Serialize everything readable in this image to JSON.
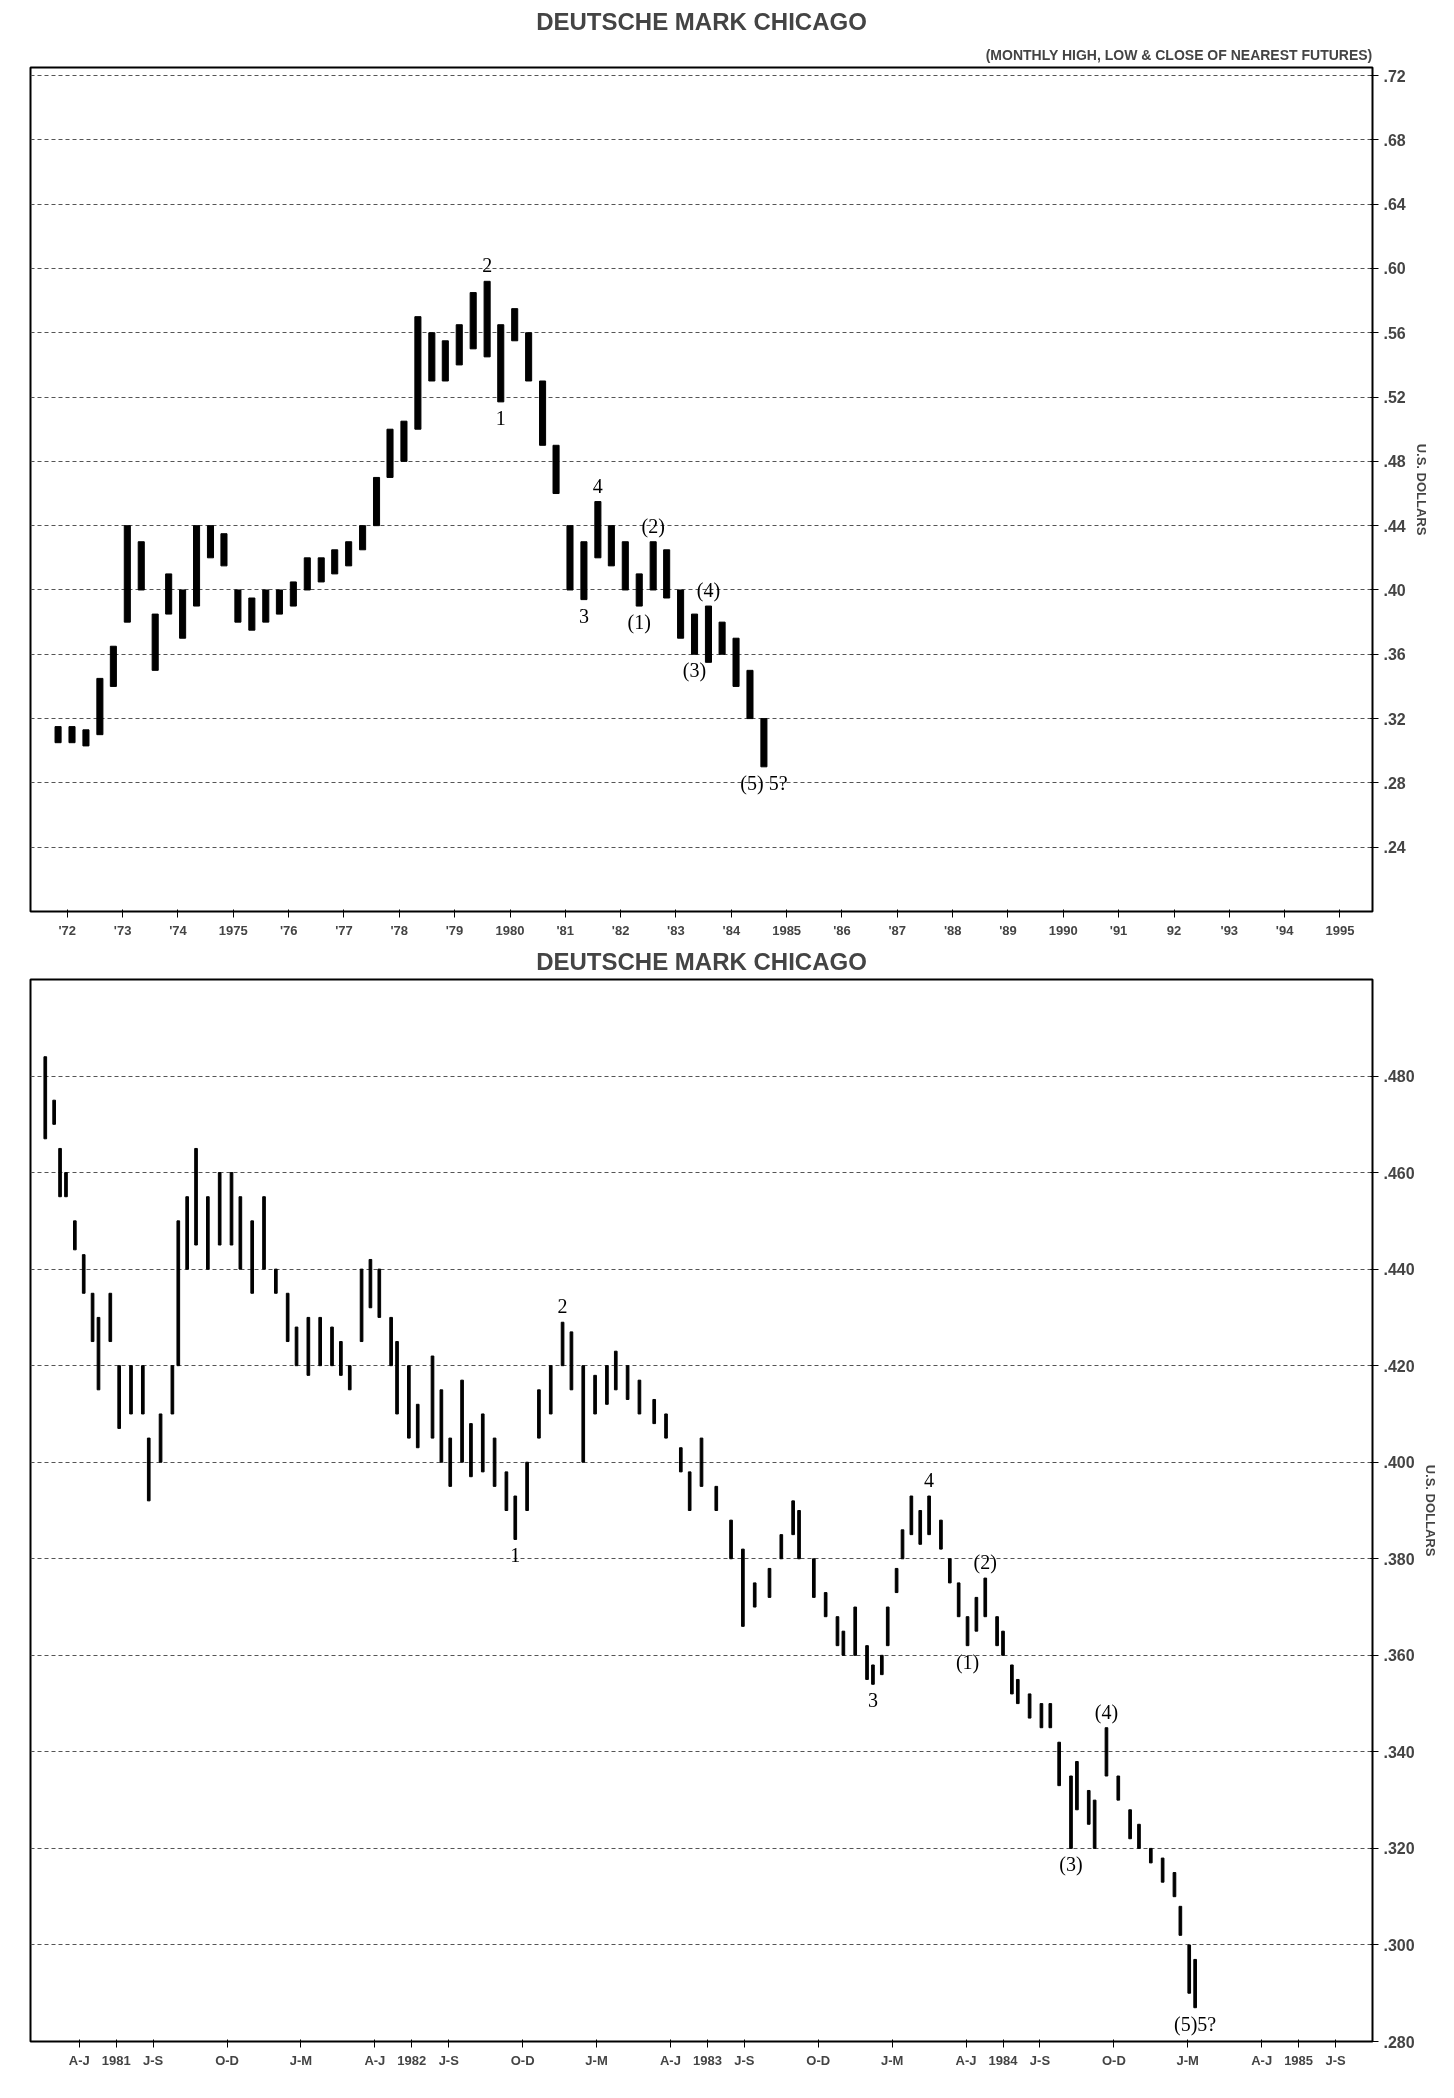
{
  "chart_data": [
    {
      "type": "bar",
      "title": "DEUTSCHE MARK CHICAGO",
      "subtitle": "(MONTHLY HIGH, LOW & CLOSE OF NEAREST FUTURES)",
      "ylabel": "U.S. DOLLARS",
      "x": [
        "1972-05",
        "1972-08",
        "1972-11",
        "1973-02",
        "1973-05",
        "1973-08",
        "1973-11",
        "1974-02",
        "1974-05",
        "1974-08",
        "1974-11",
        "1975-02",
        "1975-05",
        "1975-08",
        "1975-11",
        "1976-02",
        "1976-05",
        "1976-08",
        "1976-11",
        "1977-02",
        "1977-05",
        "1977-08",
        "1977-11",
        "1978-02",
        "1978-05",
        "1978-08",
        "1978-11",
        "1979-02",
        "1979-05",
        "1979-08",
        "1979-11",
        "1980-02",
        "1980-05",
        "1980-08",
        "1980-11",
        "1981-02",
        "1981-05",
        "1981-08",
        "1981-11",
        "1982-02",
        "1982-05",
        "1982-08",
        "1982-11",
        "1983-02",
        "1983-05",
        "1983-08",
        "1983-11",
        "1984-02",
        "1984-05",
        "1984-08",
        "1984-11",
        "1985-02"
      ],
      "base": [
        0.305,
        0.305,
        0.303,
        0.31,
        0.34,
        0.38,
        0.4,
        0.35,
        0.385,
        0.37,
        0.39,
        0.42,
        0.415,
        0.38,
        0.375,
        0.38,
        0.385,
        0.39,
        0.4,
        0.405,
        0.41,
        0.415,
        0.425,
        0.44,
        0.47,
        0.48,
        0.5,
        0.53,
        0.53,
        0.54,
        0.55,
        0.545,
        0.517,
        0.555,
        0.53,
        0.49,
        0.46,
        0.4,
        0.394,
        0.42,
        0.415,
        0.4,
        0.39,
        0.4,
        0.395,
        0.37,
        0.36,
        0.355,
        0.36,
        0.34,
        0.32,
        0.29
      ],
      "values": [
        0.01,
        0.01,
        0.01,
        0.035,
        0.025,
        0.06,
        0.03,
        0.035,
        0.025,
        0.03,
        0.05,
        0.02,
        0.02,
        0.02,
        0.02,
        0.02,
        0.015,
        0.015,
        0.02,
        0.015,
        0.015,
        0.015,
        0.015,
        0.03,
        0.03,
        0.025,
        0.07,
        0.03,
        0.025,
        0.025,
        0.035,
        0.047,
        0.048,
        0.02,
        0.03,
        0.04,
        0.03,
        0.04,
        0.036,
        0.035,
        0.025,
        0.03,
        0.02,
        0.03,
        0.03,
        0.03,
        0.025,
        0.035,
        0.02,
        0.03,
        0.03,
        0.03
      ],
      "color": "#000000",
      "xlim": [
        "1971-11",
        "1996-02"
      ],
      "ylim": [
        0.2,
        0.725
      ],
      "xticks": [
        {
          "value": "1972-07",
          "label": "'72"
        },
        {
          "value": "1973-07",
          "label": "'73"
        },
        {
          "value": "1974-07",
          "label": "'74"
        },
        {
          "value": "1975-07",
          "label": "1975"
        },
        {
          "value": "1976-07",
          "label": "'76"
        },
        {
          "value": "1977-07",
          "label": "'77"
        },
        {
          "value": "1978-07",
          "label": "'78"
        },
        {
          "value": "1979-07",
          "label": "'79"
        },
        {
          "value": "1980-07",
          "label": "1980"
        },
        {
          "value": "1981-07",
          "label": "'81"
        },
        {
          "value": "1982-07",
          "label": "'82"
        },
        {
          "value": "1983-07",
          "label": "'83"
        },
        {
          "value": "1984-07",
          "label": "'84"
        },
        {
          "value": "1985-07",
          "label": "1985"
        },
        {
          "value": "1986-07",
          "label": "'86"
        },
        {
          "value": "1987-07",
          "label": "'87"
        },
        {
          "value": "1988-07",
          "label": "'88"
        },
        {
          "value": "1989-07",
          "label": "'89"
        },
        {
          "value": "1990-07",
          "label": "1990"
        },
        {
          "value": "1991-07",
          "label": "'91"
        },
        {
          "value": "1992-07",
          "label": "92"
        },
        {
          "value": "1993-07",
          "label": "'93"
        },
        {
          "value": "1994-07",
          "label": "'94"
        },
        {
          "value": "1995-07",
          "label": "1995"
        }
      ],
      "yticks": [
        {
          "value": 0.24,
          "label": ".24"
        },
        {
          "value": 0.28,
          "label": ".28"
        },
        {
          "value": 0.32,
          "label": ".32"
        },
        {
          "value": 0.36,
          "label": ".36"
        },
        {
          "value": 0.4,
          "label": ".40"
        },
        {
          "value": 0.44,
          "label": ".44"
        },
        {
          "value": 0.48,
          "label": ".48"
        },
        {
          "value": 0.52,
          "label": ".52"
        },
        {
          "value": 0.56,
          "label": ".56"
        },
        {
          "value": 0.6,
          "label": ".60"
        },
        {
          "value": 0.64,
          "label": ".64"
        },
        {
          "value": 0.68,
          "label": ".68"
        },
        {
          "value": 0.72,
          "label": ".72"
        }
      ],
      "grid": "y",
      "annotations": [
        {
          "text": "1",
          "x": "1980-05",
          "y": 0.517
        },
        {
          "text": "2",
          "x": "1980-02",
          "y": 0.592
        },
        {
          "text": "3",
          "x": "1981-11",
          "y": 0.394
        },
        {
          "text": "4",
          "x": "1982-02",
          "y": 0.455
        },
        {
          "text": "(1)",
          "x": "1982-11",
          "y": 0.39
        },
        {
          "text": "(2)",
          "x": "1983-02",
          "y": 0.43
        },
        {
          "text": "(3)",
          "x": "1983-11",
          "y": 0.36
        },
        {
          "text": "(4)",
          "x": "1984-02",
          "y": 0.39
        },
        {
          "text": "(5) 5?",
          "x": "1985-02",
          "y": 0.29
        }
      ]
    },
    {
      "type": "bar",
      "title": "DEUTSCHE MARK CHICAGO",
      "ylabel": "U.S. DOLLARS",
      "x": [
        1981.26,
        1981.29,
        1981.31,
        1981.33,
        1981.36,
        1981.39,
        1981.42,
        1981.44,
        1981.48,
        1981.51,
        1981.55,
        1981.59,
        1981.61,
        1981.65,
        1981.69,
        1981.71,
        1981.74,
        1981.77,
        1981.81,
        1981.85,
        1981.89,
        1981.92,
        1981.96,
        1982.0,
        1982.04,
        1982.08,
        1982.11,
        1982.15,
        1982.19,
        1982.23,
        1982.26,
        1982.29,
        1982.33,
        1982.36,
        1982.39,
        1982.43,
        1982.45,
        1982.49,
        1982.52,
        1982.57,
        1982.6,
        1982.63,
        1982.67,
        1982.7,
        1982.74,
        1982.78,
        1982.82,
        1982.85,
        1982.89,
        1982.93,
        1982.97,
        1983.01,
        1983.04,
        1983.08,
        1983.12,
        1983.16,
        1983.19,
        1983.23,
        1983.27,
        1983.32,
        1983.36,
        1983.41,
        1983.44,
        1983.48,
        1983.53,
        1983.58,
        1983.62,
        1983.66,
        1983.71,
        1983.75,
        1983.79,
        1983.81,
        1983.86,
        1983.9,
        1983.94,
        1983.96,
        1984.0,
        1984.04,
        1984.06,
        1984.09,
        1984.11,
        1984.14,
        1984.16,
        1984.19,
        1984.22,
        1984.25,
        1984.29,
        1984.32,
        1984.35,
        1984.38,
        1984.41,
        1984.44,
        1984.48,
        1984.5,
        1984.53,
        1984.55,
        1984.59,
        1984.63,
        1984.66,
        1984.69,
        1984.73,
        1984.75,
        1984.79,
        1984.81,
        1984.85,
        1984.89,
        1984.93,
        1984.96,
        1985.0,
        1985.04,
        1985.08,
        1985.1,
        1985.13,
        1985.15
      ],
      "base": [
        0.467,
        0.47,
        0.455,
        0.455,
        0.444,
        0.435,
        0.425,
        0.415,
        0.425,
        0.407,
        0.41,
        0.41,
        0.392,
        0.4,
        0.41,
        0.42,
        0.44,
        0.445,
        0.44,
        0.445,
        0.445,
        0.44,
        0.435,
        0.44,
        0.435,
        0.425,
        0.42,
        0.418,
        0.42,
        0.42,
        0.418,
        0.415,
        0.425,
        0.432,
        0.43,
        0.42,
        0.41,
        0.405,
        0.403,
        0.405,
        0.4,
        0.395,
        0.4,
        0.397,
        0.398,
        0.395,
        0.39,
        0.384,
        0.39,
        0.405,
        0.41,
        0.42,
        0.415,
        0.4,
        0.41,
        0.412,
        0.415,
        0.413,
        0.41,
        0.408,
        0.405,
        0.398,
        0.39,
        0.395,
        0.39,
        0.38,
        0.366,
        0.37,
        0.372,
        0.38,
        0.385,
        0.38,
        0.372,
        0.368,
        0.362,
        0.36,
        0.36,
        0.355,
        0.354,
        0.356,
        0.362,
        0.373,
        0.38,
        0.385,
        0.383,
        0.385,
        0.382,
        0.375,
        0.368,
        0.362,
        0.365,
        0.368,
        0.362,
        0.36,
        0.352,
        0.35,
        0.347,
        0.345,
        0.345,
        0.333,
        0.32,
        0.328,
        0.325,
        0.32,
        0.335,
        0.33,
        0.322,
        0.32,
        0.317,
        0.313,
        0.31,
        0.302,
        0.29,
        0.287
      ],
      "values": [
        0.017,
        0.005,
        0.01,
        0.005,
        0.006,
        0.008,
        0.01,
        0.015,
        0.01,
        0.013,
        0.01,
        0.01,
        0.013,
        0.01,
        0.01,
        0.03,
        0.015,
        0.02,
        0.015,
        0.015,
        0.015,
        0.015,
        0.015,
        0.015,
        0.005,
        0.01,
        0.008,
        0.012,
        0.01,
        0.008,
        0.007,
        0.005,
        0.015,
        0.01,
        0.01,
        0.01,
        0.015,
        0.015,
        0.009,
        0.017,
        0.015,
        0.01,
        0.017,
        0.011,
        0.012,
        0.01,
        0.008,
        0.009,
        0.01,
        0.01,
        0.01,
        0.009,
        0.012,
        0.02,
        0.008,
        0.008,
        0.008,
        0.007,
        0.007,
        0.005,
        0.005,
        0.005,
        0.008,
        0.01,
        0.005,
        0.008,
        0.016,
        0.005,
        0.006,
        0.005,
        0.007,
        0.01,
        0.008,
        0.005,
        0.006,
        0.005,
        0.01,
        0.007,
        0.004,
        0.004,
        0.008,
        0.005,
        0.006,
        0.008,
        0.007,
        0.008,
        0.006,
        0.005,
        0.007,
        0.006,
        0.007,
        0.008,
        0.006,
        0.005,
        0.006,
        0.005,
        0.005,
        0.005,
        0.005,
        0.009,
        0.015,
        0.01,
        0.007,
        0.01,
        0.01,
        0.005,
        0.006,
        0.005,
        0.003,
        0.005,
        0.005,
        0.006,
        0.01,
        0.01
      ],
      "color": "#000000",
      "xlim": [
        1981.21,
        1985.75
      ],
      "ylim": [
        0.28,
        0.5
      ],
      "xticks": [
        {
          "value": 1981.375,
          "label": "A-J"
        },
        {
          "value": 1981.5,
          "label": "1981"
        },
        {
          "value": 1981.625,
          "label": "J-S"
        },
        {
          "value": 1981.875,
          "label": "O-D"
        },
        {
          "value": 1982.125,
          "label": "J-M"
        },
        {
          "value": 1982.375,
          "label": "A-J"
        },
        {
          "value": 1982.5,
          "label": "1982"
        },
        {
          "value": 1982.625,
          "label": "J-S"
        },
        {
          "value": 1982.875,
          "label": "O-D"
        },
        {
          "value": 1983.125,
          "label": "J-M"
        },
        {
          "value": 1983.375,
          "label": "A-J"
        },
        {
          "value": 1983.5,
          "label": "1983"
        },
        {
          "value": 1983.625,
          "label": "J-S"
        },
        {
          "value": 1983.875,
          "label": "O-D"
        },
        {
          "value": 1984.125,
          "label": "J-M"
        },
        {
          "value": 1984.375,
          "label": "A-J"
        },
        {
          "value": 1984.5,
          "label": "1984"
        },
        {
          "value": 1984.625,
          "label": "J-S"
        },
        {
          "value": 1984.875,
          "label": "O-D"
        },
        {
          "value": 1985.125,
          "label": "J-M"
        },
        {
          "value": 1985.375,
          "label": "A-J"
        },
        {
          "value": 1985.5,
          "label": "1985"
        },
        {
          "value": 1985.625,
          "label": "J-S"
        }
      ],
      "yticks": [
        {
          "value": 0.28,
          "label": ".280"
        },
        {
          "value": 0.3,
          "label": ".300"
        },
        {
          "value": 0.32,
          "label": ".320"
        },
        {
          "value": 0.34,
          "label": ".340"
        },
        {
          "value": 0.36,
          "label": ".360"
        },
        {
          "value": 0.38,
          "label": ".380"
        },
        {
          "value": 0.4,
          "label": ".400"
        },
        {
          "value": 0.42,
          "label": ".420"
        },
        {
          "value": 0.44,
          "label": ".440"
        },
        {
          "value": 0.46,
          "label": ".460"
        },
        {
          "value": 0.48,
          "label": ".480"
        }
      ],
      "grid": "y",
      "annotations": [
        {
          "text": "1",
          "x": 1982.85,
          "y": 0.384
        },
        {
          "text": "2",
          "x": 1983.01,
          "y": 0.429
        },
        {
          "text": "3",
          "x": 1984.06,
          "y": 0.354
        },
        {
          "text": "4",
          "x": 1984.25,
          "y": 0.393
        },
        {
          "text": "(1)",
          "x": 1984.38,
          "y": 0.362
        },
        {
          "text": "(2)",
          "x": 1984.44,
          "y": 0.376
        },
        {
          "text": "(3)",
          "x": 1984.73,
          "y": 0.32
        },
        {
          "text": "(4)",
          "x": 1984.85,
          "y": 0.345
        },
        {
          "text": "(5)5?",
          "x": 1985.15,
          "y": 0.287
        }
      ]
    }
  ]
}
